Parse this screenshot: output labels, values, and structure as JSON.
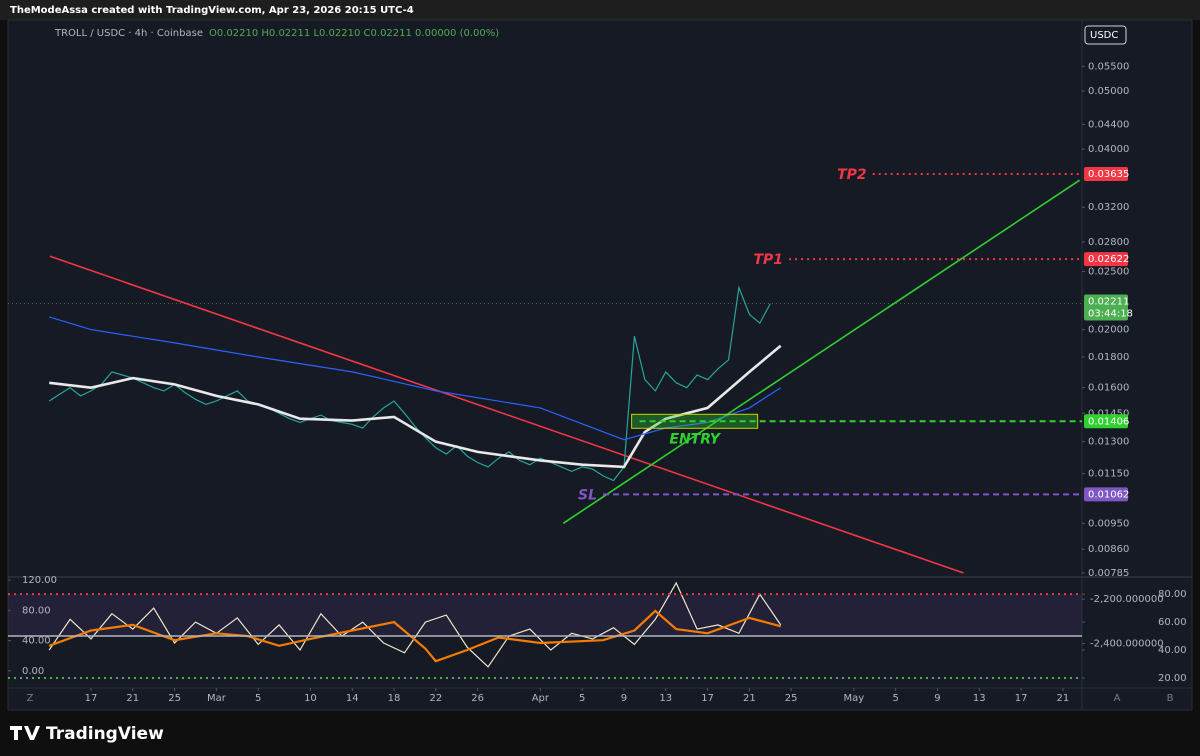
{
  "header": {
    "credit": "TheModeAssa created with TradingView.com, Apr 23, 2026 20:15 UTC-4",
    "symbol": "TROLL / USDC · 4h · Coinbase",
    "ohlc": "O0.02210 H0.02211 L0.02210 C0.02211 0.00000 (0.00%)"
  },
  "footer": {
    "brand": "TradingView",
    "corner_buttons": [
      "Z",
      "A",
      "B"
    ]
  },
  "chart_data": [
    {
      "type": "line",
      "currency": "USDC",
      "color": "#26a69a",
      "log_scale": true,
      "x": [
        -4,
        -3,
        -2,
        -1,
        0,
        1,
        2,
        3,
        4,
        5,
        6,
        7,
        8,
        9,
        10,
        11,
        12,
        13,
        14,
        15,
        16,
        17,
        18,
        19,
        20,
        21,
        22,
        23,
        24,
        25,
        26,
        27,
        28,
        29,
        30,
        31,
        32,
        33,
        34,
        35,
        36,
        37,
        38,
        39,
        40,
        41,
        42,
        43,
        44,
        45,
        46,
        47,
        48,
        49,
        50,
        51,
        52,
        53,
        54,
        55,
        56,
        57,
        58,
        59,
        60,
        61,
        62,
        63,
        64,
        65
      ],
      "values": [
        0.0152,
        0.0156,
        0.016,
        0.0155,
        0.0158,
        0.0162,
        0.017,
        0.0168,
        0.0166,
        0.0163,
        0.016,
        0.0158,
        0.0162,
        0.0157,
        0.0153,
        0.015,
        0.0152,
        0.0155,
        0.0158,
        0.0152,
        0.015,
        0.0148,
        0.0145,
        0.0142,
        0.014,
        0.0142,
        0.0144,
        0.0141,
        0.014,
        0.0139,
        0.0137,
        0.0143,
        0.0148,
        0.0152,
        0.0145,
        0.0138,
        0.0132,
        0.0127,
        0.0124,
        0.0128,
        0.0123,
        0.012,
        0.0118,
        0.0122,
        0.0125,
        0.0121,
        0.0119,
        0.0122,
        0.012,
        0.0118,
        0.0116,
        0.0118,
        0.0117,
        0.0114,
        0.0112,
        0.0118,
        0.0195,
        0.0165,
        0.0158,
        0.017,
        0.0163,
        0.016,
        0.0168,
        0.0165,
        0.0172,
        0.0178,
        0.0235,
        0.0212,
        0.0205,
        0.0221
      ],
      "xlim": [
        -7.94,
        94.83
      ],
      "xticks": [
        {
          "value": 0,
          "label": "17"
        },
        {
          "value": 4,
          "label": "21"
        },
        {
          "value": 8,
          "label": "25"
        },
        {
          "value": 12,
          "label": "Mar"
        },
        {
          "value": 16,
          "label": "5"
        },
        {
          "value": 21,
          "label": "10"
        },
        {
          "value": 25,
          "label": "14"
        },
        {
          "value": 29,
          "label": "18"
        },
        {
          "value": 33,
          "label": "22"
        },
        {
          "value": 37,
          "label": "26"
        },
        {
          "value": 43,
          "label": "Apr"
        },
        {
          "value": 47,
          "label": "5"
        },
        {
          "value": 51,
          "label": "9"
        },
        {
          "value": 55,
          "label": "13"
        },
        {
          "value": 59,
          "label": "17"
        },
        {
          "value": 63,
          "label": "21"
        },
        {
          "value": 67,
          "label": "25"
        },
        {
          "value": 73,
          "label": "May"
        },
        {
          "value": 77,
          "label": "5"
        },
        {
          "value": 81,
          "label": "9"
        },
        {
          "value": 85,
          "label": "13"
        },
        {
          "value": 89,
          "label": "17"
        },
        {
          "value": 93,
          "label": "21"
        }
      ],
      "ylim": [
        0.00773,
        0.0657
      ],
      "yticks": [
        {
          "value": 0.055,
          "label": "0.05500"
        },
        {
          "value": 0.05,
          "label": "0.05000"
        },
        {
          "value": 0.044,
          "label": "0.04400"
        },
        {
          "value": 0.04,
          "label": "0.04000"
        },
        {
          "value": 0.032,
          "label": "0.03200"
        },
        {
          "value": 0.028,
          "label": "0.02800"
        },
        {
          "value": 0.025,
          "label": "0.02500"
        },
        {
          "value": 0.02,
          "label": "0.02000"
        },
        {
          "value": 0.018,
          "label": "0.01800"
        },
        {
          "value": 0.016,
          "label": "0.01600"
        },
        {
          "value": 0.0145,
          "label": "0.01450"
        },
        {
          "value": 0.013,
          "label": "0.01300"
        },
        {
          "value": 0.0115,
          "label": "0.01150"
        },
        {
          "value": 0.0095,
          "label": "0.00950"
        },
        {
          "value": 0.0086,
          "label": "0.00860"
        },
        {
          "value": 0.00785,
          "label": "0.00785"
        }
      ],
      "series": [
        {
          "color": "#e8e8e8",
          "x": [
            -4,
            0,
            4,
            8,
            12,
            16,
            20,
            25,
            29,
            33,
            37,
            43,
            47,
            51,
            53,
            55,
            59,
            63,
            66
          ],
          "values": [
            0.0163,
            0.016,
            0.0166,
            0.0162,
            0.0155,
            0.015,
            0.0142,
            0.0141,
            0.0143,
            0.013,
            0.0125,
            0.0121,
            0.0119,
            0.0118,
            0.0135,
            0.0142,
            0.0148,
            0.017,
            0.0188
          ]
        },
        {
          "color": "#2962ff",
          "x": [
            -4,
            0,
            8,
            16,
            25,
            33,
            43,
            51,
            55,
            59,
            63,
            66
          ],
          "values": [
            0.021,
            0.02,
            0.019,
            0.018,
            0.017,
            0.0158,
            0.0148,
            0.0131,
            0.0137,
            0.014,
            0.0148,
            0.016
          ]
        }
      ],
      "trendlines": [
        {
          "color": "#f23645",
          "x": [
            -3.92,
            83.5
          ],
          "values": [
            0.0265,
            0.00785
          ]
        },
        {
          "color": "#2fd12f",
          "x": [
            45.2,
            94.6
          ],
          "values": [
            0.0095,
            0.0355
          ]
        }
      ],
      "levels": [
        {
          "label": "TP2",
          "value": 0.03635,
          "color": "#f23645",
          "style": "dotted",
          "x_start": 74.8,
          "label_side": "left"
        },
        {
          "label": "TP1",
          "value": 0.02622,
          "color": "#f23645",
          "style": "dotted",
          "x_start": 66.8,
          "label_side": "left"
        },
        {
          "label": "ENTRY",
          "value": 0.01406,
          "color": "#2fd12f",
          "style": "dashed",
          "x_start": 52.5,
          "label_side": "below"
        },
        {
          "label": "SL",
          "value": 0.01062,
          "color": "#7e57c2",
          "style": "dashed",
          "x_start": 49,
          "label_side": "left"
        }
      ],
      "last_price": {
        "value": 0.02211,
        "countdown": "03:44:18",
        "color": "#4caf50"
      }
    },
    {
      "type": "line",
      "xlim": [
        -7.94,
        94.83
      ],
      "ylim": [
        12.8,
        92.3
      ],
      "yticks": [
        {
          "value": 80,
          "label": "80.00"
        },
        {
          "value": 60,
          "label": "60.00"
        },
        {
          "value": 40,
          "label": "40.00"
        },
        {
          "value": 20,
          "label": "20.00"
        }
      ],
      "y2lim": [
        -22.7,
        124
      ],
      "y2ticks": [
        {
          "value": 120,
          "label": "120.00"
        },
        {
          "value": 80,
          "label": "80.00"
        },
        {
          "value": 40,
          "label": "40.00"
        },
        {
          "value": 0,
          "label": "0.00"
        }
      ],
      "y3lim": [
        -2600,
        -2100
      ],
      "y3ticks": [
        {
          "value": -2200,
          "label": "-2,200.000000"
        },
        {
          "value": -2400,
          "label": "-2,400.000000"
        }
      ],
      "series": [
        {
          "color": "#f0e6c8",
          "x": [
            -4,
            -2,
            0,
            2,
            4,
            6,
            8,
            10,
            12,
            14,
            16,
            18,
            20,
            22,
            24,
            26,
            28,
            30,
            32,
            34,
            36,
            38,
            40,
            42,
            44,
            46,
            48,
            50,
            52,
            54,
            56,
            58,
            60,
            62,
            64,
            66
          ],
          "values": [
            40,
            62,
            48,
            66,
            55,
            70,
            45,
            60,
            52,
            63,
            44,
            58,
            40,
            66,
            50,
            60,
            45,
            38,
            60,
            65,
            42,
            28,
            50,
            55,
            40,
            52,
            48,
            56,
            44,
            62,
            88,
            55,
            58,
            52,
            80,
            58
          ]
        },
        {
          "color": "#f57c00",
          "x": [
            -4,
            0,
            4,
            8,
            12,
            15,
            18,
            21,
            25,
            29,
            32,
            33,
            36,
            39,
            43,
            49,
            52,
            54,
            56,
            59,
            63,
            66
          ],
          "values": [
            43,
            54,
            58,
            47,
            52,
            50,
            43,
            48,
            54,
            60,
            41,
            32,
            40,
            49,
            45,
            47,
            54,
            68,
            55,
            52,
            63,
            57
          ]
        }
      ],
      "levels": [
        {
          "value": 80,
          "color": "#f23645",
          "style": "dotted"
        },
        {
          "value": 50,
          "color": "#b2b5be",
          "style": "solid"
        },
        {
          "value": 20,
          "color": "#4caf50",
          "style": "dotted"
        }
      ]
    }
  ]
}
